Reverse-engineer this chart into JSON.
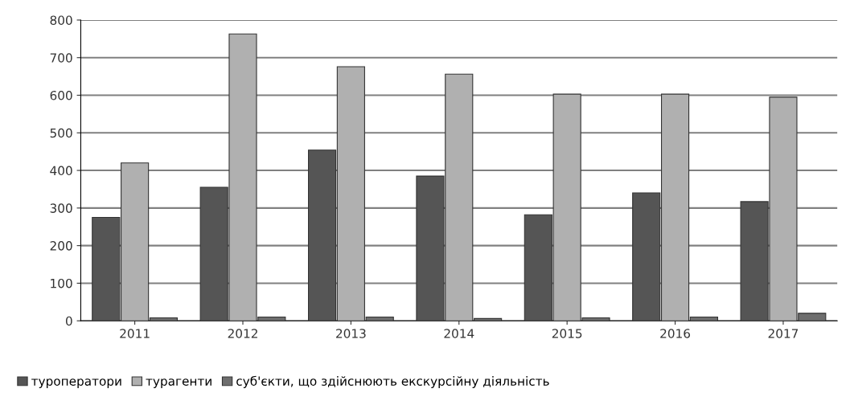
{
  "chart_data": {
    "type": "bar",
    "categories": [
      "2011",
      "2012",
      "2013",
      "2014",
      "2015",
      "2016",
      "2017"
    ],
    "series": [
      {
        "name": "туроператори",
        "color": "#555555",
        "values": [
          275,
          355,
          454,
          385,
          282,
          340,
          317
        ]
      },
      {
        "name": "турагенти",
        "color": "#b0b0b0",
        "values": [
          420,
          763,
          676,
          656,
          603,
          603,
          595
        ]
      },
      {
        "name": "суб'єкти, що здійснюють екскурсійну діяльність",
        "color": "#6e6e6e",
        "values": [
          8,
          10,
          10,
          6,
          8,
          10,
          20
        ]
      }
    ],
    "ylim": [
      0,
      800
    ],
    "yticks": [
      0,
      100,
      200,
      300,
      400,
      500,
      600,
      700,
      800
    ],
    "grid": "y",
    "legend": "bottom left"
  }
}
